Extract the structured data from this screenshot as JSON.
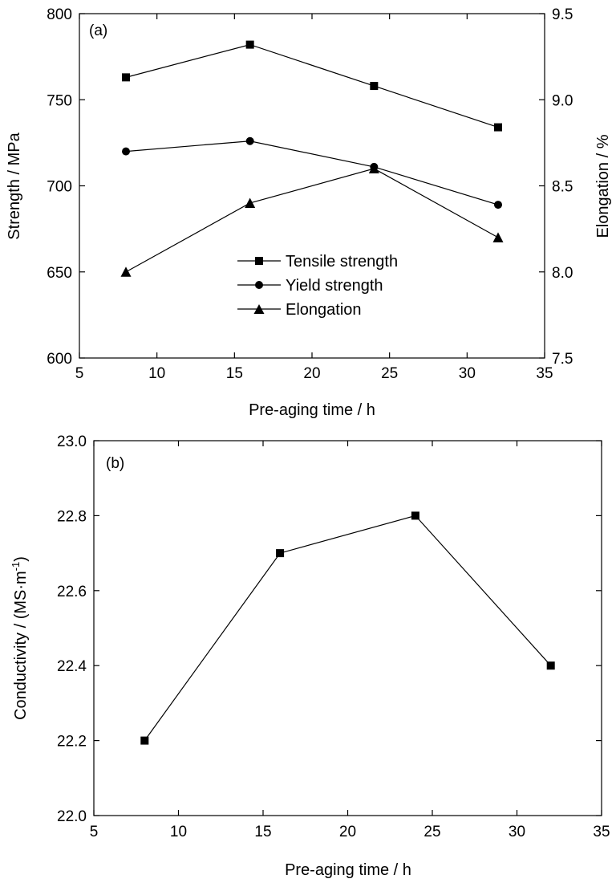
{
  "chart_data": [
    {
      "type": "line",
      "panel_label": "(a)",
      "xlabel": "Pre-aging time / h",
      "ylabel": "Strength / MPa",
      "y2label": "Elongation / %",
      "xlim": [
        5,
        35
      ],
      "ylim": [
        600,
        800
      ],
      "y2lim": [
        7.5,
        9.5
      ],
      "xticks": [
        "5",
        "10",
        "15",
        "20",
        "25",
        "30",
        "35"
      ],
      "yticks": [
        "600",
        "650",
        "700",
        "750",
        "800"
      ],
      "y2ticks": [
        "7.5",
        "8.0",
        "8.5",
        "9.0",
        "9.5"
      ],
      "x": [
        8,
        16,
        24,
        32
      ],
      "grid": false,
      "legend_position": "center",
      "series": [
        {
          "name": "Tensile strength",
          "axis": "left",
          "marker": "square",
          "values": [
            763,
            782,
            758,
            734
          ]
        },
        {
          "name": "Yield strength",
          "axis": "left",
          "marker": "circle",
          "values": [
            720,
            726,
            711,
            689
          ]
        },
        {
          "name": "Elongation",
          "axis": "right",
          "marker": "triangle",
          "values": [
            8.0,
            8.4,
            8.6,
            8.2
          ]
        }
      ]
    },
    {
      "type": "line",
      "panel_label": "(b)",
      "xlabel": "Pre-aging time / h",
      "ylabel_main": "Conductivity / (MS·m",
      "ylabel_sup": "-1",
      "ylabel_tail": ")",
      "xlim": [
        5,
        35
      ],
      "ylim": [
        22.0,
        23.0
      ],
      "xticks": [
        "5",
        "10",
        "15",
        "20",
        "25",
        "30",
        "35"
      ],
      "yticks": [
        "22.0",
        "22.2",
        "22.4",
        "22.6",
        "22.8",
        "23.0"
      ],
      "x": [
        8,
        16,
        24,
        32
      ],
      "grid": false,
      "series": [
        {
          "marker": "square",
          "values": [
            22.2,
            22.7,
            22.8,
            22.4
          ]
        }
      ]
    }
  ]
}
